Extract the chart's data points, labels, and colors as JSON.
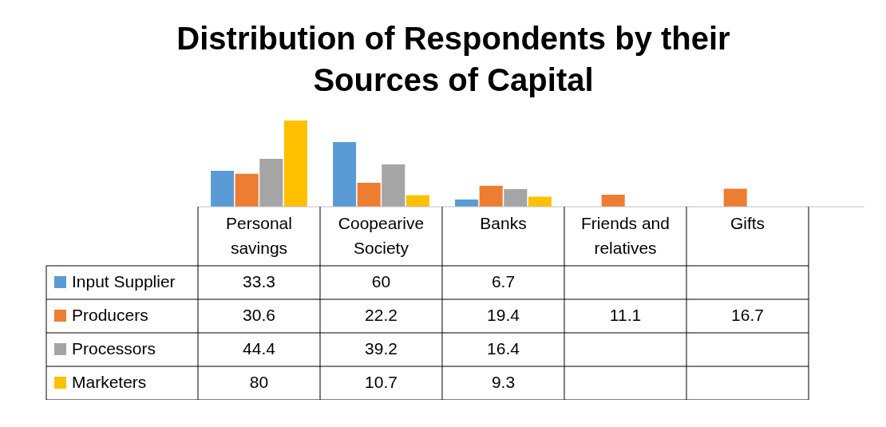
{
  "chart_data": {
    "type": "bar",
    "title": "Distribution of Respondents by their Sources of Capital",
    "categories": [
      "Personal savings",
      "Coopearive Society",
      "Banks",
      "Friends and relatives",
      "Gifts"
    ],
    "series": [
      {
        "name": "Input Supplier",
        "color": "#5b9bd5",
        "values": [
          33.3,
          60,
          6.7,
          null,
          null
        ]
      },
      {
        "name": "Producers",
        "color": "#ed7d31",
        "values": [
          30.6,
          22.2,
          19.4,
          11.1,
          16.7
        ]
      },
      {
        "name": "Processors",
        "color": "#a5a5a5",
        "values": [
          44.4,
          39.2,
          16.4,
          null,
          null
        ]
      },
      {
        "name": "Marketers",
        "color": "#ffc000",
        "values": [
          80,
          10.7,
          9.3,
          null,
          null
        ]
      }
    ],
    "data_labels": true,
    "legend": "bottom"
  }
}
